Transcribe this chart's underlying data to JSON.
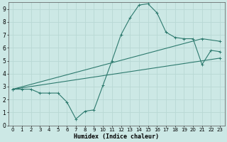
{
  "xlabel": "Humidex (Indice chaleur)",
  "bg_color": "#cce8e5",
  "grid_color": "#b8d8d4",
  "line_color": "#2d7a6e",
  "xlim": [
    -0.5,
    23.5
  ],
  "ylim": [
    0,
    9.5
  ],
  "xticks": [
    0,
    1,
    2,
    3,
    4,
    5,
    6,
    7,
    8,
    9,
    10,
    11,
    12,
    13,
    14,
    15,
    16,
    17,
    18,
    19,
    20,
    21,
    22,
    23
  ],
  "yticks": [
    0,
    1,
    2,
    3,
    4,
    5,
    6,
    7,
    8,
    9
  ],
  "curve_x": [
    0,
    1,
    2,
    3,
    4,
    5,
    6,
    7,
    8,
    9,
    10,
    11,
    12,
    13,
    14,
    15,
    16,
    17,
    18,
    19,
    20,
    21,
    22,
    23
  ],
  "curve_y": [
    2.8,
    2.8,
    2.8,
    2.5,
    2.5,
    2.5,
    1.8,
    0.5,
    1.1,
    1.2,
    3.1,
    5.0,
    7.0,
    8.3,
    9.3,
    9.4,
    8.7,
    7.2,
    6.8,
    6.7,
    6.7,
    4.7,
    5.8,
    5.7
  ],
  "line2_x": [
    0,
    21,
    23
  ],
  "line2_y": [
    2.8,
    6.7,
    6.5
  ],
  "line3_x": [
    0,
    23
  ],
  "line3_y": [
    2.8,
    5.2
  ],
  "tick_fontsize": 5,
  "xlabel_fontsize": 6,
  "marker_size": 2.2,
  "linewidth": 0.8
}
